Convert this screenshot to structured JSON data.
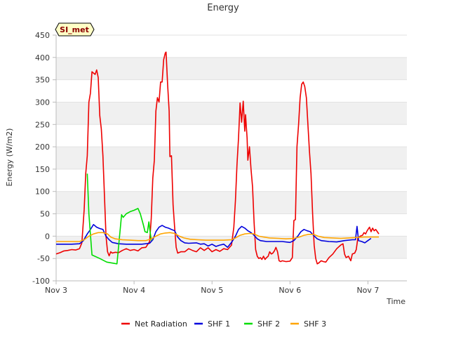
{
  "chart_data": {
    "type": "line",
    "title": "Energy",
    "xlabel": "Time",
    "ylabel": "Energy (W/m2)",
    "badge": "SI_met",
    "xlim": [
      0,
      4.5
    ],
    "ylim": [
      -100,
      450
    ],
    "yticks": [
      -100,
      -50,
      0,
      50,
      100,
      150,
      200,
      250,
      300,
      350,
      400,
      450
    ],
    "xticks": [
      {
        "value": 0,
        "label": "Nov 3"
      },
      {
        "value": 1,
        "label": "Nov 4"
      },
      {
        "value": 2,
        "label": "Nov 5"
      },
      {
        "value": 3,
        "label": "Nov 6"
      },
      {
        "value": 4,
        "label": "Nov 7"
      }
    ],
    "grid": "horizontal bands",
    "legend_position": "bottom",
    "series": [
      {
        "name": "Net Radiation",
        "color": "#ee0000",
        "points": [
          [
            0.0,
            -40
          ],
          [
            0.05,
            -37
          ],
          [
            0.1,
            -33
          ],
          [
            0.15,
            -32
          ],
          [
            0.2,
            -30
          ],
          [
            0.25,
            -31
          ],
          [
            0.3,
            -28
          ],
          [
            0.33,
            -15
          ],
          [
            0.36,
            60
          ],
          [
            0.38,
            140
          ],
          [
            0.4,
            180
          ],
          [
            0.42,
            300
          ],
          [
            0.44,
            320
          ],
          [
            0.46,
            368
          ],
          [
            0.48,
            365
          ],
          [
            0.5,
            362
          ],
          [
            0.52,
            372
          ],
          [
            0.54,
            355
          ],
          [
            0.56,
            270
          ],
          [
            0.58,
            240
          ],
          [
            0.6,
            180
          ],
          [
            0.62,
            90
          ],
          [
            0.64,
            0
          ],
          [
            0.66,
            -35
          ],
          [
            0.68,
            -44
          ],
          [
            0.7,
            -35
          ],
          [
            0.72,
            -38
          ],
          [
            0.76,
            -36
          ],
          [
            0.8,
            -37
          ],
          [
            0.85,
            -32
          ],
          [
            0.9,
            -28
          ],
          [
            0.95,
            -32
          ],
          [
            1.0,
            -30
          ],
          [
            1.05,
            -33
          ],
          [
            1.1,
            -26
          ],
          [
            1.15,
            -25
          ],
          [
            1.2,
            -12
          ],
          [
            1.22,
            40
          ],
          [
            1.24,
            130
          ],
          [
            1.26,
            170
          ],
          [
            1.28,
            280
          ],
          [
            1.3,
            310
          ],
          [
            1.32,
            300
          ],
          [
            1.34,
            345
          ],
          [
            1.36,
            345
          ],
          [
            1.38,
            395
          ],
          [
            1.4,
            410
          ],
          [
            1.41,
            412
          ],
          [
            1.43,
            340
          ],
          [
            1.45,
            280
          ],
          [
            1.46,
            178
          ],
          [
            1.48,
            180
          ],
          [
            1.5,
            70
          ],
          [
            1.52,
            20
          ],
          [
            1.54,
            -25
          ],
          [
            1.56,
            -38
          ],
          [
            1.6,
            -35
          ],
          [
            1.65,
            -35
          ],
          [
            1.7,
            -28
          ],
          [
            1.75,
            -32
          ],
          [
            1.8,
            -35
          ],
          [
            1.85,
            -26
          ],
          [
            1.9,
            -32
          ],
          [
            1.95,
            -26
          ],
          [
            2.0,
            -35
          ],
          [
            2.05,
            -30
          ],
          [
            2.1,
            -34
          ],
          [
            2.15,
            -28
          ],
          [
            2.2,
            -30
          ],
          [
            2.25,
            -20
          ],
          [
            2.28,
            20
          ],
          [
            2.3,
            80
          ],
          [
            2.32,
            160
          ],
          [
            2.34,
            220
          ],
          [
            2.36,
            298
          ],
          [
            2.38,
            255
          ],
          [
            2.4,
            302
          ],
          [
            2.42,
            235
          ],
          [
            2.43,
            272
          ],
          [
            2.45,
            220
          ],
          [
            2.46,
            170
          ],
          [
            2.48,
            200
          ],
          [
            2.5,
            150
          ],
          [
            2.52,
            110
          ],
          [
            2.54,
            30
          ],
          [
            2.56,
            -30
          ],
          [
            2.58,
            -45
          ],
          [
            2.6,
            -50
          ],
          [
            2.62,
            -48
          ],
          [
            2.64,
            -52
          ],
          [
            2.66,
            -45
          ],
          [
            2.68,
            -52
          ],
          [
            2.7,
            -48
          ],
          [
            2.72,
            -45
          ],
          [
            2.74,
            -35
          ],
          [
            2.76,
            -40
          ],
          [
            2.78,
            -38
          ],
          [
            2.8,
            -33
          ],
          [
            2.82,
            -25
          ],
          [
            2.84,
            -35
          ],
          [
            2.86,
            -55
          ],
          [
            2.88,
            -57
          ],
          [
            2.9,
            -55
          ],
          [
            2.95,
            -57
          ],
          [
            3.0,
            -56
          ],
          [
            3.03,
            -48
          ],
          [
            3.05,
            35
          ],
          [
            3.07,
            37
          ],
          [
            3.09,
            200
          ],
          [
            3.11,
            250
          ],
          [
            3.13,
            310
          ],
          [
            3.15,
            340
          ],
          [
            3.17,
            345
          ],
          [
            3.19,
            335
          ],
          [
            3.21,
            310
          ],
          [
            3.23,
            250
          ],
          [
            3.25,
            190
          ],
          [
            3.27,
            140
          ],
          [
            3.29,
            50
          ],
          [
            3.31,
            -20
          ],
          [
            3.33,
            -50
          ],
          [
            3.35,
            -62
          ],
          [
            3.37,
            -60
          ],
          [
            3.4,
            -55
          ],
          [
            3.43,
            -57
          ],
          [
            3.46,
            -58
          ],
          [
            3.5,
            -48
          ],
          [
            3.55,
            -40
          ],
          [
            3.6,
            -28
          ],
          [
            3.65,
            -20
          ],
          [
            3.68,
            -17
          ],
          [
            3.7,
            -40
          ],
          [
            3.72,
            -48
          ],
          [
            3.75,
            -45
          ],
          [
            3.78,
            -55
          ],
          [
            3.8,
            -40
          ],
          [
            3.83,
            -38
          ],
          [
            3.85,
            -30
          ],
          [
            3.87,
            -5
          ],
          [
            3.9,
            0
          ],
          [
            3.93,
            2
          ],
          [
            3.95,
            8
          ],
          [
            3.97,
            5
          ],
          [
            3.99,
            12
          ],
          [
            4.02,
            20
          ],
          [
            4.04,
            10
          ],
          [
            4.06,
            18
          ],
          [
            4.08,
            12
          ],
          [
            4.1,
            15
          ],
          [
            4.12,
            10
          ],
          [
            4.14,
            5
          ]
        ]
      },
      {
        "name": "SHF 1",
        "color": "#0000dd",
        "points": [
          [
            0.0,
            -18
          ],
          [
            0.1,
            -18
          ],
          [
            0.2,
            -18
          ],
          [
            0.3,
            -17
          ],
          [
            0.35,
            -10
          ],
          [
            0.4,
            5
          ],
          [
            0.44,
            15
          ],
          [
            0.48,
            26
          ],
          [
            0.52,
            20
          ],
          [
            0.56,
            17
          ],
          [
            0.6,
            15
          ],
          [
            0.64,
            0
          ],
          [
            0.68,
            -8
          ],
          [
            0.72,
            -14
          ],
          [
            0.8,
            -17
          ],
          [
            0.9,
            -18
          ],
          [
            1.0,
            -18
          ],
          [
            1.1,
            -18
          ],
          [
            1.2,
            -16
          ],
          [
            1.24,
            -8
          ],
          [
            1.28,
            10
          ],
          [
            1.32,
            20
          ],
          [
            1.36,
            24
          ],
          [
            1.4,
            20
          ],
          [
            1.44,
            18
          ],
          [
            1.48,
            15
          ],
          [
            1.52,
            12
          ],
          [
            1.56,
            -2
          ],
          [
            1.6,
            -10
          ],
          [
            1.65,
            -15
          ],
          [
            1.7,
            -16
          ],
          [
            1.8,
            -15
          ],
          [
            1.85,
            -18
          ],
          [
            1.9,
            -17
          ],
          [
            1.95,
            -22
          ],
          [
            2.0,
            -18
          ],
          [
            2.05,
            -23
          ],
          [
            2.1,
            -20
          ],
          [
            2.15,
            -18
          ],
          [
            2.2,
            -25
          ],
          [
            2.25,
            -14
          ],
          [
            2.3,
            0
          ],
          [
            2.34,
            15
          ],
          [
            2.38,
            22
          ],
          [
            2.42,
            18
          ],
          [
            2.46,
            12
          ],
          [
            2.5,
            8
          ],
          [
            2.54,
            2
          ],
          [
            2.58,
            -6
          ],
          [
            2.62,
            -10
          ],
          [
            2.7,
            -12
          ],
          [
            2.8,
            -12
          ],
          [
            2.9,
            -12
          ],
          [
            3.0,
            -14
          ],
          [
            3.05,
            -10
          ],
          [
            3.1,
            0
          ],
          [
            3.14,
            10
          ],
          [
            3.18,
            15
          ],
          [
            3.22,
            12
          ],
          [
            3.26,
            10
          ],
          [
            3.3,
            2
          ],
          [
            3.35,
            -6
          ],
          [
            3.4,
            -10
          ],
          [
            3.5,
            -12
          ],
          [
            3.6,
            -13
          ],
          [
            3.7,
            -10
          ],
          [
            3.8,
            -8
          ],
          [
            3.84,
            -8
          ],
          [
            3.86,
            22
          ],
          [
            3.88,
            -10
          ],
          [
            3.92,
            -12
          ],
          [
            3.96,
            -15
          ],
          [
            4.0,
            -10
          ],
          [
            4.04,
            -5
          ]
        ]
      },
      {
        "name": "SHF 2",
        "color": "#00dd00",
        "points": [
          [
            0.4,
            140
          ],
          [
            0.42,
            50
          ],
          [
            0.46,
            -42
          ],
          [
            0.56,
            -50
          ],
          [
            0.65,
            -58
          ],
          [
            0.78,
            -62
          ],
          [
            0.84,
            48
          ],
          [
            0.86,
            42
          ],
          [
            0.9,
            50
          ],
          [
            0.95,
            55
          ],
          [
            1.0,
            58
          ],
          [
            1.05,
            62
          ],
          [
            1.08,
            50
          ],
          [
            1.12,
            25
          ],
          [
            1.14,
            10
          ],
          [
            1.17,
            8
          ],
          [
            1.19,
            32
          ],
          [
            1.2,
            18
          ],
          [
            1.22,
            -10
          ]
        ]
      },
      {
        "name": "SHF 3",
        "color": "#ffa500",
        "points": [
          [
            0.0,
            -12
          ],
          [
            0.1,
            -12
          ],
          [
            0.2,
            -12
          ],
          [
            0.3,
            -12
          ],
          [
            0.36,
            -8
          ],
          [
            0.42,
            0
          ],
          [
            0.48,
            5
          ],
          [
            0.54,
            8
          ],
          [
            0.6,
            8
          ],
          [
            0.66,
            5
          ],
          [
            0.7,
            -2
          ],
          [
            0.76,
            -6
          ],
          [
            0.85,
            -8
          ],
          [
            0.95,
            -9
          ],
          [
            1.05,
            -10
          ],
          [
            1.15,
            -10
          ],
          [
            1.22,
            -6
          ],
          [
            1.28,
            0
          ],
          [
            1.34,
            5
          ],
          [
            1.4,
            7
          ],
          [
            1.46,
            8
          ],
          [
            1.52,
            6
          ],
          [
            1.58,
            0
          ],
          [
            1.64,
            -4
          ],
          [
            1.72,
            -7
          ],
          [
            1.82,
            -8
          ],
          [
            1.92,
            -9
          ],
          [
            2.05,
            -9
          ],
          [
            2.15,
            -9
          ],
          [
            2.25,
            -8
          ],
          [
            2.3,
            -4
          ],
          [
            2.36,
            2
          ],
          [
            2.42,
            5
          ],
          [
            2.48,
            6
          ],
          [
            2.54,
            5
          ],
          [
            2.6,
            0
          ],
          [
            2.66,
            -2
          ],
          [
            2.74,
            -4
          ],
          [
            2.85,
            -5
          ],
          [
            2.95,
            -6
          ],
          [
            3.05,
            -5
          ],
          [
            3.12,
            -2
          ],
          [
            3.18,
            2
          ],
          [
            3.24,
            4
          ],
          [
            3.3,
            4
          ],
          [
            3.36,
            0
          ],
          [
            3.44,
            -3
          ],
          [
            3.55,
            -4
          ],
          [
            3.65,
            -5
          ],
          [
            3.75,
            -4
          ],
          [
            3.85,
            -3
          ],
          [
            3.95,
            -2
          ],
          [
            4.05,
            -2
          ],
          [
            4.14,
            -2
          ]
        ]
      }
    ]
  }
}
